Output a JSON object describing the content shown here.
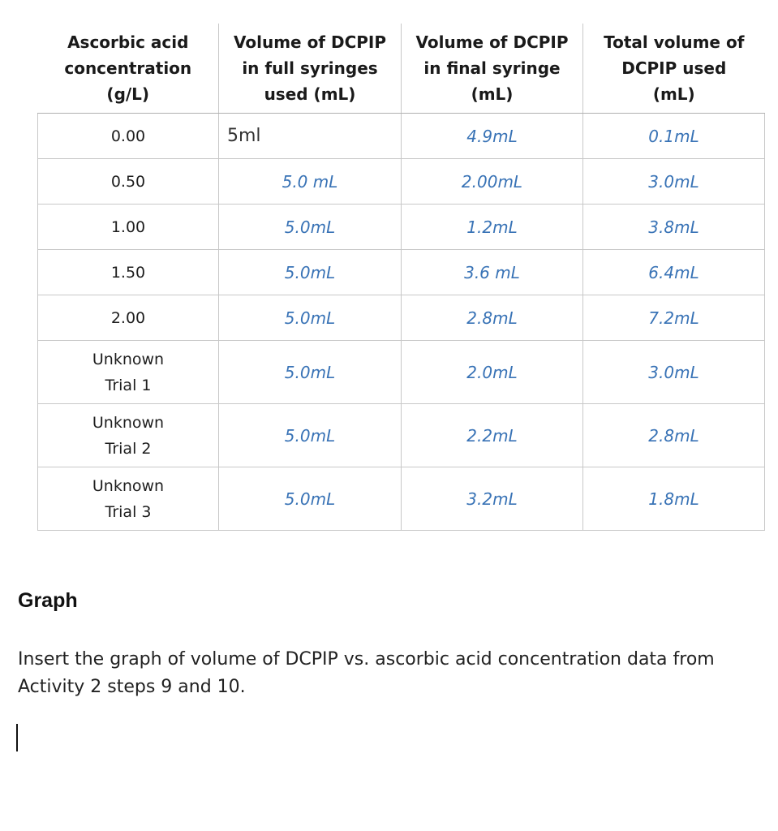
{
  "table": {
    "headers": [
      [
        "Ascorbic acid",
        "concentration",
        "(g/L)"
      ],
      [
        "Volume of DCPIP",
        "in full syringes",
        "used (mL)"
      ],
      [
        "Volume of DCPIP",
        "in final syringe",
        "(mL)"
      ],
      [
        "Total volume of",
        "DCPIP used",
        "(mL)"
      ]
    ],
    "rows": [
      {
        "conc": [
          "0.00"
        ],
        "full": "5ml",
        "final": "4.9mL",
        "total": "0.1mL"
      },
      {
        "conc": [
          "0.50"
        ],
        "full": "5.0 mL",
        "final": "2.00mL",
        "total": "3.0mL"
      },
      {
        "conc": [
          "1.00"
        ],
        "full": "5.0mL",
        "final": "1.2mL",
        "total": "3.8mL"
      },
      {
        "conc": [
          "1.50"
        ],
        "full": "5.0mL",
        "final": "3.6 mL",
        "total": "6.4mL"
      },
      {
        "conc": [
          "2.00"
        ],
        "full": "5.0mL",
        "final": "2.8mL",
        "total": "7.2mL"
      },
      {
        "conc": [
          "Unknown",
          "Trial 1"
        ],
        "full": "5.0mL",
        "final": "2.0mL",
        "total": "3.0mL"
      },
      {
        "conc": [
          "Unknown",
          "Trial 2"
        ],
        "full": "5.0mL",
        "final": "2.2mL",
        "total": "2.8mL"
      },
      {
        "conc": [
          "Unknown",
          "Trial 3"
        ],
        "full": "5.0mL",
        "final": "3.2mL",
        "total": "1.8mL"
      }
    ]
  },
  "graph": {
    "heading": "Graph",
    "instruction": "Insert the graph of volume of DCPIP vs. ascorbic acid concentration data from Activity 2 steps 9 and 10."
  },
  "colors": {
    "entered_value": "#3973b6",
    "border": "#c8c8c8"
  }
}
